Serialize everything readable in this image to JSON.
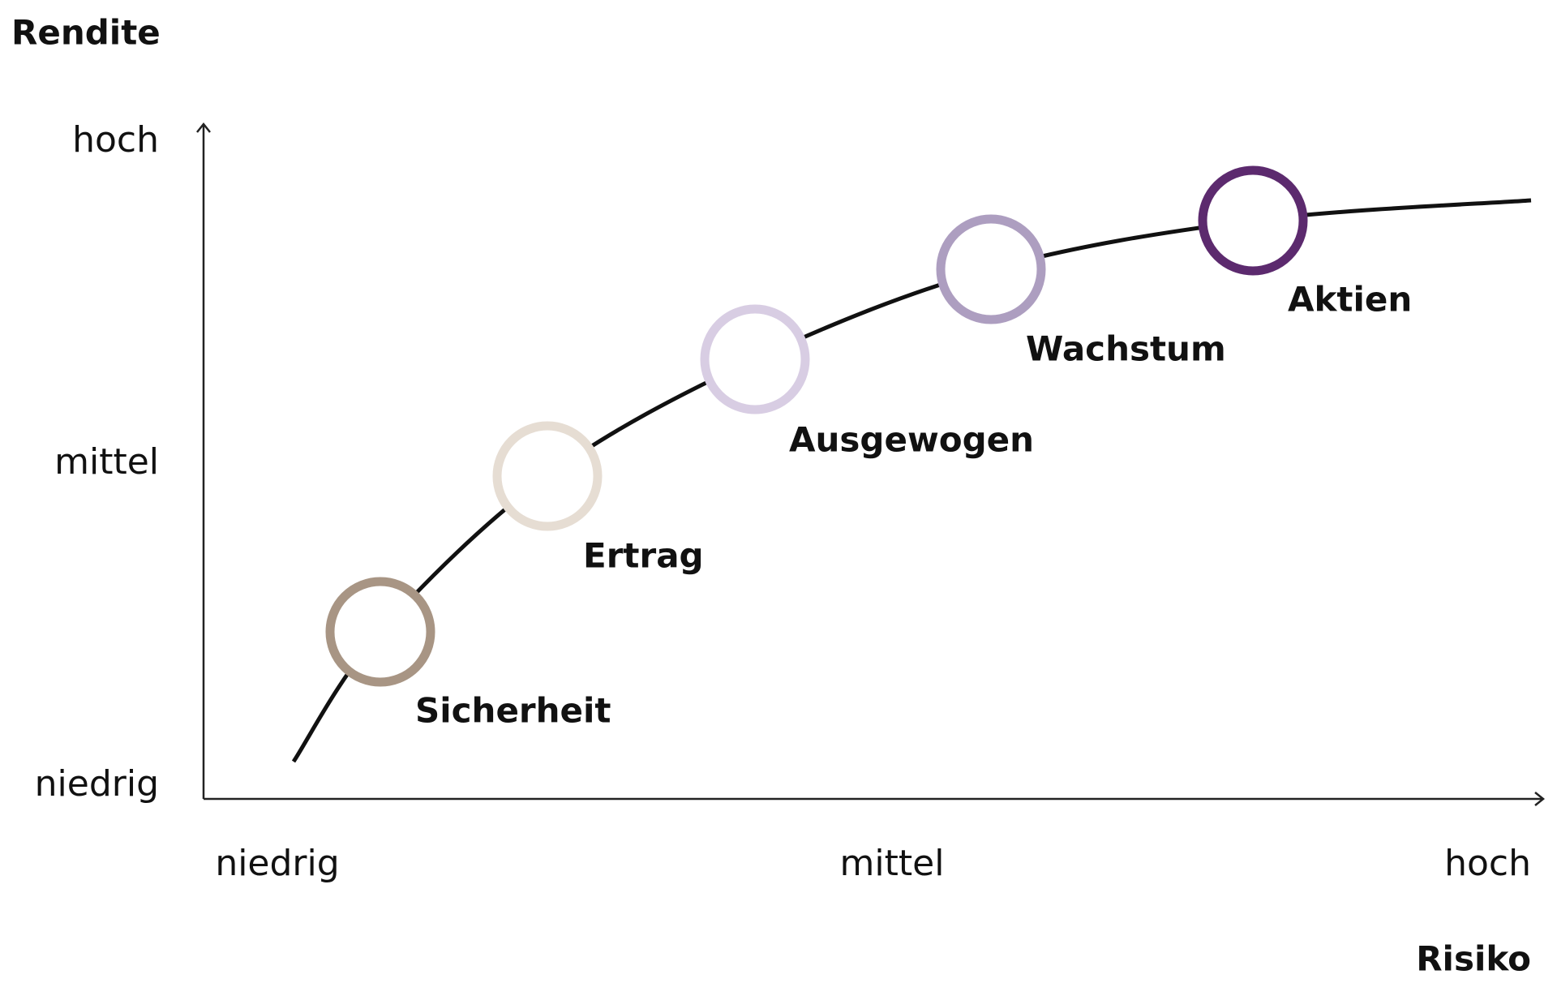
{
  "y_axis": {
    "title": "Rendite",
    "labels": [
      "hoch",
      "mittel",
      "niedrig"
    ]
  },
  "x_axis": {
    "title": "Risiko",
    "labels": [
      "niedrig",
      "mittel",
      "hoch"
    ]
  },
  "nodes": [
    {
      "label": "Sicherheit",
      "color": "#a89584"
    },
    {
      "label": "Ertrag",
      "color": "#e6ddd3"
    },
    {
      "label": "Ausgewogen",
      "color": "#d8cde3"
    },
    {
      "label": "Wachstum",
      "color": "#ad9ec0"
    },
    {
      "label": "Aktien",
      "color": "#5c2a6e"
    }
  ]
}
